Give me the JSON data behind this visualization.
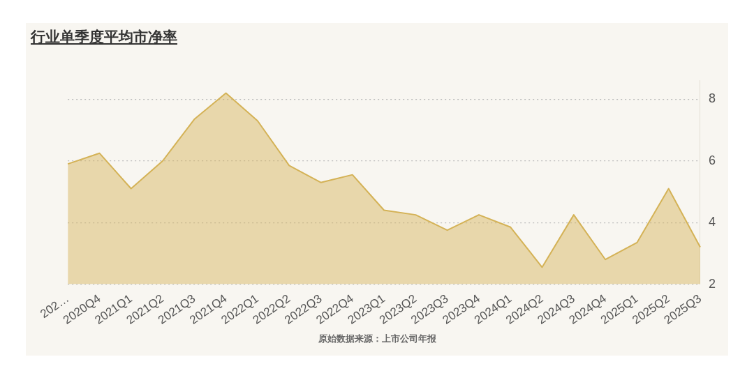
{
  "chart_data": {
    "type": "area",
    "title": "行业单季度平均市净率",
    "categories": [
      "202…",
      "2020Q4",
      "2021Q1",
      "2021Q2",
      "2021Q3",
      "2021Q4",
      "2022Q1",
      "2022Q2",
      "2022Q3",
      "2022Q4",
      "2023Q1",
      "2023Q2",
      "2023Q3",
      "2023Q4",
      "2024Q1",
      "2024Q2",
      "2024Q3",
      "2024Q4",
      "2025Q1",
      "2025Q2",
      "2025Q3"
    ],
    "series": [
      {
        "color": "#d4b256",
        "values": [
          5.9,
          6.25,
          5.1,
          6.0,
          7.35,
          8.2,
          7.3,
          5.85,
          5.3,
          5.55,
          4.4,
          4.25,
          3.75,
          4.25,
          3.85,
          2.55,
          4.25,
          2.8,
          3.35,
          5.1,
          3.2
        ]
      }
    ],
    "ylim": [
      2,
      8.6
    ],
    "yticks": [
      2,
      4,
      6,
      8
    ],
    "grid": "y",
    "legend": false,
    "marker": "none",
    "annotations": [
      "原始数据来源：上市公司年报"
    ]
  }
}
